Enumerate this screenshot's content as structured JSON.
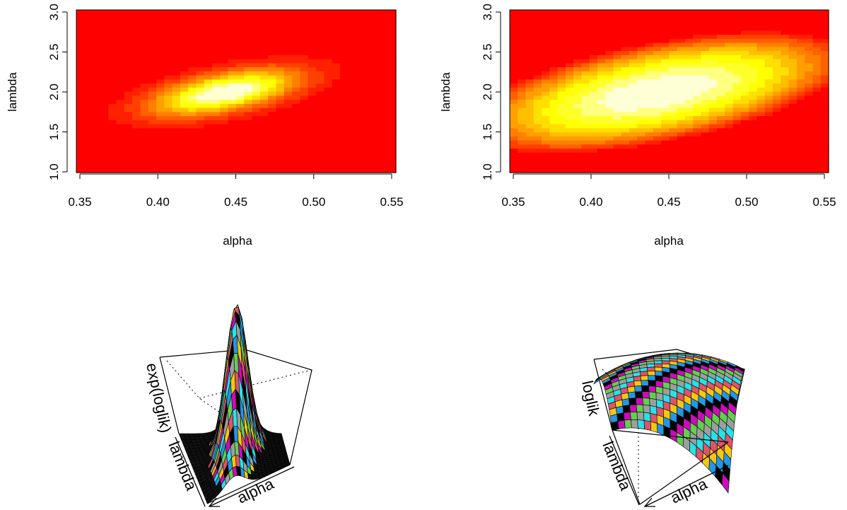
{
  "chart_data": [
    {
      "type": "heatmap",
      "panel": "top-left",
      "quantity": "exp(loglik)",
      "xlabel": "alpha",
      "ylabel": "lambda",
      "xlim": [
        0.35,
        0.55
      ],
      "ylim": [
        1.0,
        3.0
      ],
      "xticks": [
        "0.35",
        "0.40",
        "0.45",
        "0.50",
        "0.55"
      ],
      "yticks": [
        "1.0",
        "1.5",
        "2.0",
        "2.5",
        "3.0"
      ],
      "grid": false,
      "colormap": "heat.colors (red = low, white = high)",
      "grid_size": [
        40,
        40
      ],
      "peak": {
        "alpha": 0.44,
        "lambda": 1.98
      }
    },
    {
      "type": "heatmap",
      "panel": "top-right",
      "quantity": "loglik",
      "xlabel": "alpha",
      "ylabel": "lambda",
      "xlim": [
        0.35,
        0.55
      ],
      "ylim": [
        1.0,
        3.0
      ],
      "xticks": [
        "0.35",
        "0.40",
        "0.45",
        "0.50",
        "0.55"
      ],
      "yticks": [
        "1.0",
        "1.5",
        "2.0",
        "2.5",
        "3.0"
      ],
      "grid": false,
      "colormap": "heat.colors (red = low, pale yellow = high)",
      "grid_size": [
        40,
        40
      ],
      "peak": {
        "alpha": 0.45,
        "lambda": 2.0
      }
    },
    {
      "type": "surface",
      "panel": "bottom-left",
      "zlabel": "exp(loglik)",
      "xlabel": "alpha",
      "ylabel": "lambda",
      "shape": "sharp peak over a flat base"
    },
    {
      "type": "surface",
      "panel": "bottom-right",
      "zlabel": "loglik",
      "xlabel": "alpha",
      "ylabel": "lambda",
      "shape": "broad dome"
    }
  ],
  "labels": {
    "heatmap1_xlabel": "alpha",
    "heatmap1_ylabel": "lambda",
    "heatmap2_xlabel": "alpha",
    "heatmap2_ylabel": "lambda",
    "persp1_zlabel": "exp(loglik)",
    "persp1_ylabel": "lambda",
    "persp1_xlabel": "alpha",
    "persp2_zlabel": "loglik",
    "persp2_ylabel": "lambda",
    "persp2_xlabel": "alpha"
  }
}
